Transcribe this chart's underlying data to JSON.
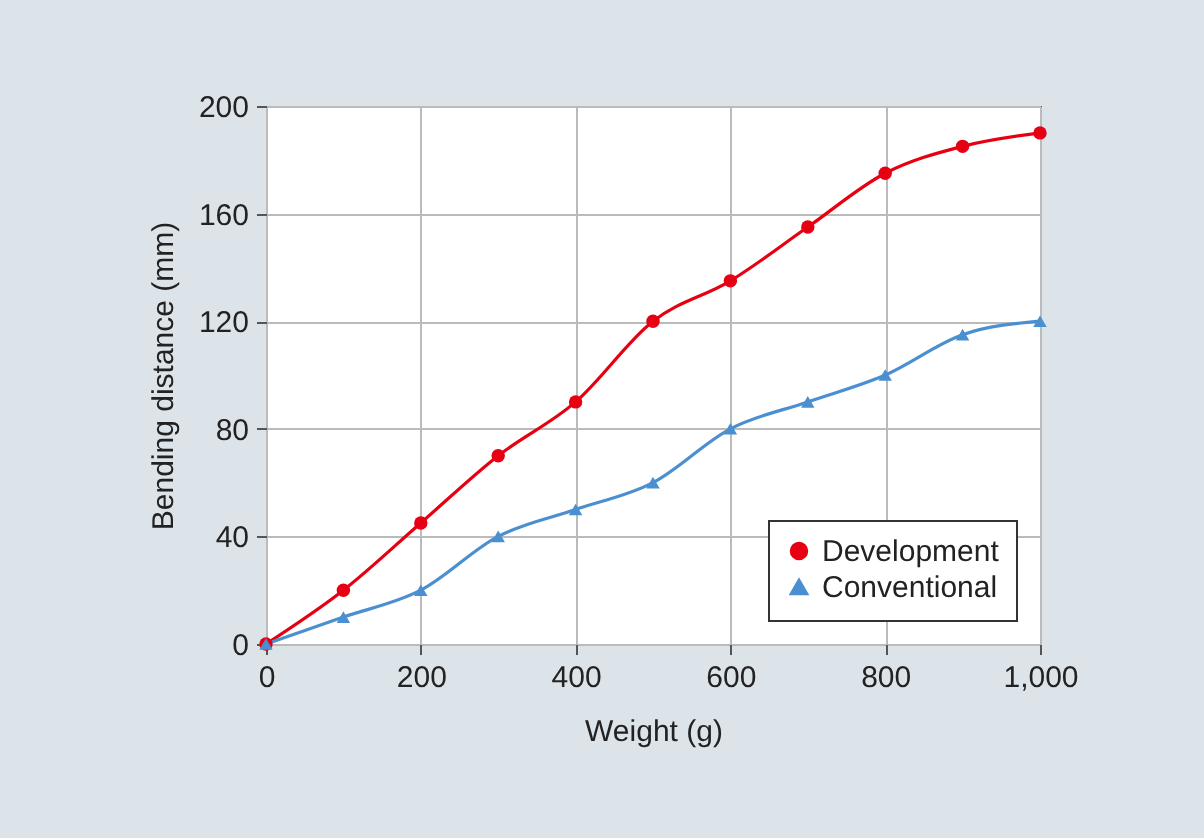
{
  "chart_data": {
    "type": "line",
    "xlabel": "Weight (g)",
    "ylabel": "Bending distance (mm)",
    "x": [
      0,
      100,
      200,
      300,
      400,
      500,
      600,
      700,
      800,
      900,
      1000
    ],
    "series": [
      {
        "name": "Development",
        "color": "#e60012",
        "marker": "circle",
        "values": [
          0,
          20,
          45,
          70,
          90,
          120,
          135,
          155,
          175,
          185,
          190
        ]
      },
      {
        "name": "Conventional",
        "color": "#4a8fd0",
        "marker": "triangle",
        "values": [
          0,
          10,
          20,
          40,
          50,
          60,
          80,
          90,
          100,
          115,
          120
        ]
      }
    ],
    "xlim": [
      0,
      1000
    ],
    "xticks": [
      0,
      200,
      400,
      600,
      800,
      {
        "value": 1000,
        "label": "1,000"
      }
    ],
    "ylim": [
      0,
      200
    ],
    "yticks": [
      0,
      40,
      80,
      120,
      160,
      200
    ],
    "grid": true,
    "legend": "bottom right",
    "line_style": "solid"
  }
}
